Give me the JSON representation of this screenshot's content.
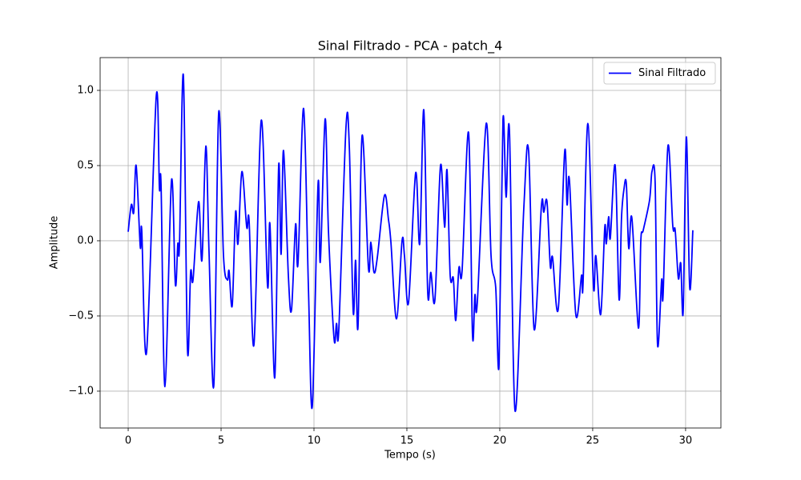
{
  "chart_data": {
    "type": "line",
    "title": "Sinal Filtrado - PCA - patch_4",
    "xlabel": "Tempo (s)",
    "ylabel": "Amplitude",
    "x": [
      0,
      0.17,
      0.3,
      0.43,
      0.65,
      0.73,
      0.99,
      1.51,
      1.68,
      1.77,
      1.98,
      2.33,
      2.54,
      2.67,
      2.76,
      2.97,
      3.19,
      3.36,
      3.49,
      3.79,
      3.97,
      4.18,
      4.35,
      4.61,
      4.87,
      5.13,
      5.34,
      5.43,
      5.6,
      5.78,
      5.91,
      6.12,
      6.38,
      6.51,
      6.77,
      7.16,
      7.5,
      7.63,
      7.89,
      8.1,
      8.23,
      8.36,
      8.62,
      8.79,
      9.01,
      9.14,
      9.44,
      9.7,
      9.91,
      10.22,
      10.34,
      10.6,
      10.78,
      11.08,
      11.21,
      11.34,
      11.72,
      11.9,
      12.11,
      12.24,
      12.37,
      12.59,
      12.93,
      13.06,
      13.23,
      13.41,
      13.79,
      14.01,
      14.14,
      14.44,
      14.74,
      14.87,
      15.09,
      15.47,
      15.69,
      15.91,
      16.12,
      16.29,
      16.51,
      16.81,
      17.03,
      17.16,
      17.33,
      17.5,
      17.63,
      17.8,
      17.97,
      18.32,
      18.53,
      18.66,
      18.79,
      19.27,
      19.53,
      19.78,
      19.96,
      20.17,
      20.34,
      20.52,
      20.82,
      21.29,
      21.55,
      21.85,
      22.24,
      22.37,
      22.54,
      22.72,
      22.84,
      23.15,
      23.49,
      23.62,
      23.75,
      24.09,
      24.4,
      24.48,
      24.74,
      25.04,
      25.17,
      25.43,
      25.65,
      25.73,
      25.86,
      25.95,
      26.21,
      26.42,
      26.55,
      26.68,
      26.81,
      26.94,
      27.11,
      27.46,
      27.59,
      27.72,
      28.06,
      28.19,
      28.36,
      28.49,
      28.71,
      28.79,
      29.05,
      29.31,
      29.44,
      29.61,
      29.74,
      29.87,
      30.04,
      30.22,
      30.39
    ],
    "series": [
      {
        "name": "Sinal Filtrado",
        "color": "#0000ff",
        "values": [
          0.06,
          0.24,
          0.19,
          0.5,
          -0.04,
          0.07,
          -0.74,
          0.96,
          0.35,
          0.37,
          -0.97,
          0.4,
          -0.29,
          -0.02,
          -0.03,
          1.1,
          -0.72,
          -0.21,
          -0.26,
          0.26,
          -0.13,
          0.63,
          -0.07,
          -0.96,
          0.85,
          -0.1,
          -0.26,
          -0.2,
          -0.43,
          0.19,
          -0.02,
          0.46,
          0.09,
          0.13,
          -0.69,
          0.8,
          -0.3,
          0.11,
          -0.91,
          0.5,
          -0.09,
          0.6,
          -0.23,
          -0.46,
          0.11,
          -0.15,
          0.88,
          -0.31,
          -1.1,
          0.38,
          -0.14,
          0.81,
          0.06,
          -0.65,
          -0.55,
          -0.58,
          0.75,
          0.63,
          -0.47,
          -0.13,
          -0.57,
          0.7,
          -0.18,
          -0.01,
          -0.21,
          -0.11,
          0.3,
          0.14,
          -0.01,
          -0.52,
          0.0,
          -0.1,
          -0.41,
          0.45,
          -0.02,
          0.87,
          -0.34,
          -0.21,
          -0.39,
          0.5,
          0.09,
          0.47,
          -0.23,
          -0.25,
          -0.53,
          -0.18,
          -0.2,
          0.72,
          -0.62,
          -0.36,
          -0.41,
          0.78,
          -0.1,
          -0.31,
          -0.82,
          0.8,
          0.29,
          0.73,
          -1.13,
          0.21,
          0.6,
          -0.59,
          0.23,
          0.19,
          0.26,
          -0.17,
          -0.11,
          -0.45,
          0.59,
          0.24,
          0.4,
          -0.49,
          -0.23,
          -0.29,
          0.78,
          -0.3,
          -0.1,
          -0.49,
          0.09,
          -0.02,
          0.16,
          0.02,
          0.5,
          -0.39,
          0.15,
          0.34,
          0.38,
          -0.05,
          0.15,
          -0.58,
          0.0,
          0.07,
          0.27,
          0.46,
          0.39,
          -0.69,
          -0.26,
          -0.36,
          0.63,
          0.1,
          0.07,
          -0.25,
          -0.15,
          -0.47,
          0.69,
          -0.31,
          0.07
        ]
      }
    ],
    "xlim": [
      -1.51,
      31.9
    ],
    "ylim": [
      -1.245,
      1.218
    ],
    "xticks": [
      0,
      5,
      10,
      15,
      20,
      25,
      30
    ],
    "yticks": [
      {
        "value": -1.0,
        "label": "−1.0"
      },
      {
        "value": -0.5,
        "label": "−0.5"
      },
      {
        "value": 0.0,
        "label": "0.0"
      },
      {
        "value": 0.5,
        "label": "0.5"
      },
      {
        "value": 1.0,
        "label": "1.0"
      }
    ],
    "grid": true,
    "legend": "upper right"
  }
}
